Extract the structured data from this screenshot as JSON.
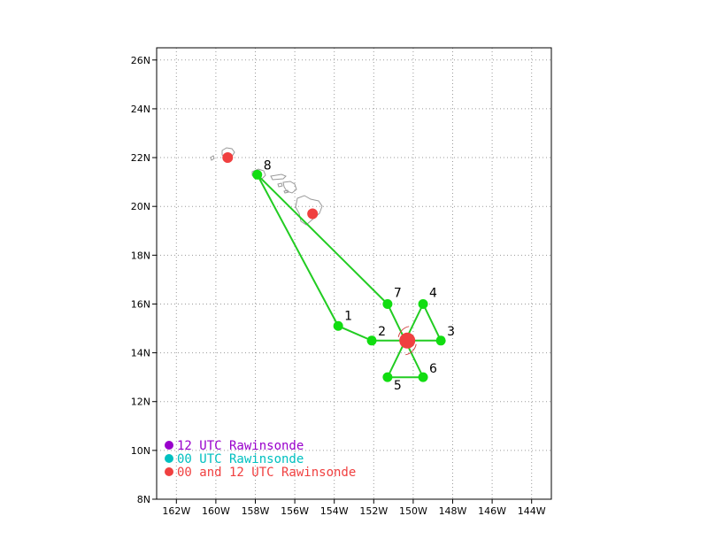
{
  "map": {
    "lon_range": [
      -163,
      -143
    ],
    "lat_range": [
      8,
      26.5
    ],
    "lon_ticks": [
      {
        "value": -162,
        "label": "162W"
      },
      {
        "value": -160,
        "label": "160W"
      },
      {
        "value": -158,
        "label": "158W"
      },
      {
        "value": -156,
        "label": "156W"
      },
      {
        "value": -154,
        "label": "154W"
      },
      {
        "value": -152,
        "label": "152W"
      },
      {
        "value": -150,
        "label": "150W"
      },
      {
        "value": -148,
        "label": "148W"
      },
      {
        "value": -146,
        "label": "146W"
      },
      {
        "value": -144,
        "label": "144W"
      }
    ],
    "lat_ticks": [
      {
        "value": 8,
        "label": "8N"
      },
      {
        "value": 10,
        "label": "10N"
      },
      {
        "value": 12,
        "label": "12N"
      },
      {
        "value": 14,
        "label": "14N"
      },
      {
        "value": 16,
        "label": "16N"
      },
      {
        "value": 18,
        "label": "18N"
      },
      {
        "value": 20,
        "label": "20N"
      },
      {
        "value": 22,
        "label": "22N"
      },
      {
        "value": 24,
        "label": "24N"
      },
      {
        "value": 26,
        "label": "26N"
      }
    ],
    "grid": true,
    "colors": {
      "track": "#22cc22",
      "dropsonde": "#11dd11",
      "rawinsonde_both": "#f04040",
      "rawinsonde_12": "#9900cc",
      "rawinsonde_00": "#00c0c0",
      "storm_center": "#f04040",
      "storm_symbol": "#d04040",
      "coastline": "#9a9a9a"
    }
  },
  "storm_center": {
    "lon": -150.3,
    "lat": 14.5
  },
  "track": [
    {
      "label": "8",
      "lon": -157.9,
      "lat": 21.3
    },
    {
      "label": "1",
      "lon": -153.8,
      "lat": 15.1
    },
    {
      "label": "2",
      "lon": -152.1,
      "lat": 14.5
    },
    {
      "label": "3",
      "lon": -148.6,
      "lat": 14.5
    },
    {
      "label": "4",
      "lon": -149.5,
      "lat": 16.0
    },
    {
      "label": "5",
      "lon": -151.3,
      "lat": 13.0
    },
    {
      "label": "6",
      "lon": -149.5,
      "lat": 13.0
    },
    {
      "label": "7",
      "lon": -151.3,
      "lat": 16.0
    }
  ],
  "path_order": [
    "8",
    "1",
    "2",
    "3",
    "4",
    "5",
    "6",
    "7",
    "8"
  ],
  "rawinsondes": [
    {
      "type": "both",
      "lon": -159.4,
      "lat": 22.0
    },
    {
      "type": "both",
      "lon": -155.1,
      "lat": 19.7
    }
  ],
  "legend": {
    "items": [
      {
        "key": "rawinsonde_12",
        "label": "12 UTC Rawinsonde"
      },
      {
        "key": "rawinsonde_00",
        "label": "00 UTC Rawinsonde"
      },
      {
        "key": "rawinsonde_both",
        "label": "00 and 12 UTC Rawinsonde"
      }
    ]
  }
}
